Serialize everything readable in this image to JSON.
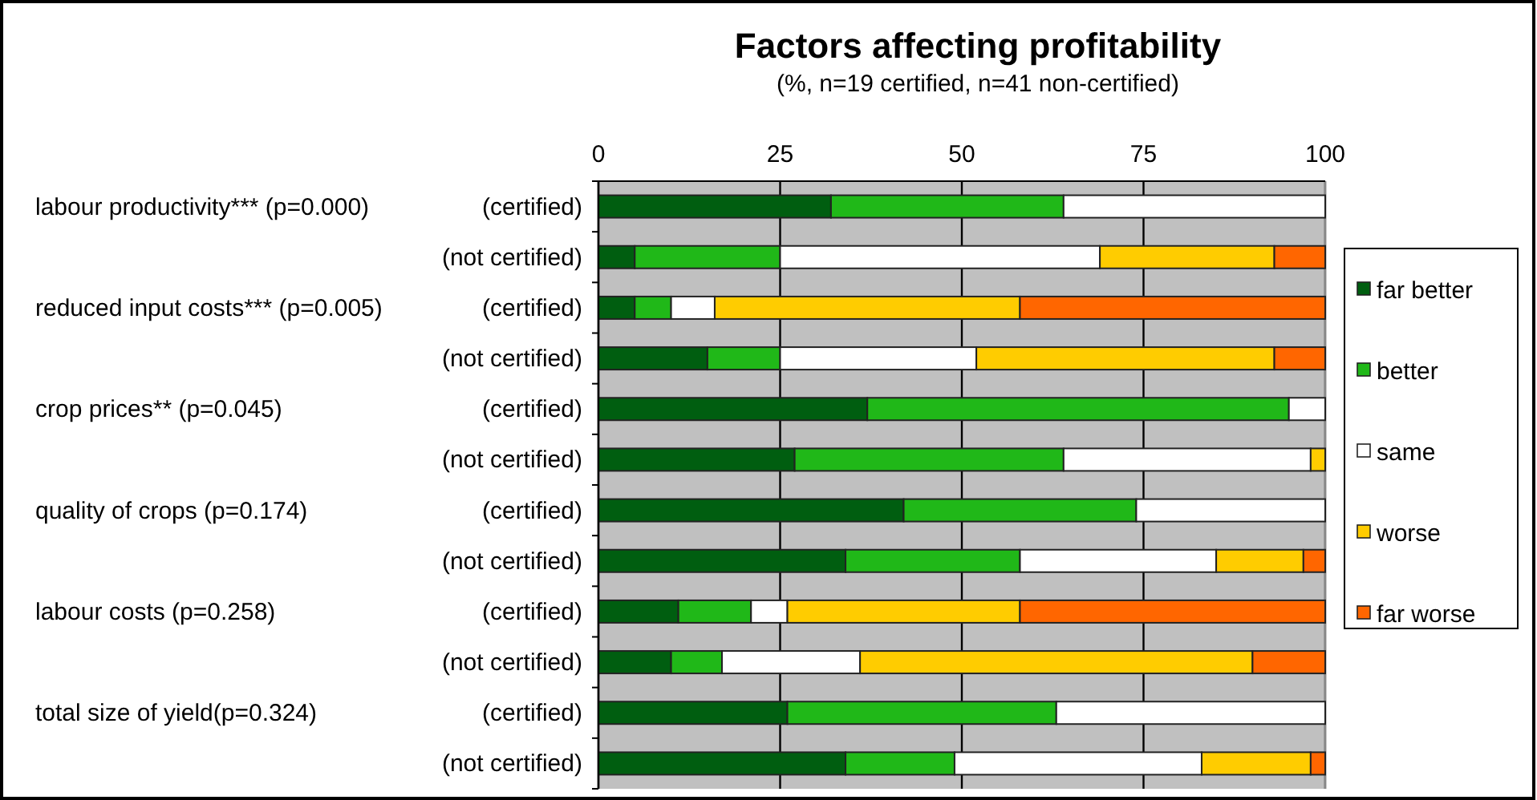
{
  "chart_data": {
    "type": "bar",
    "orientation": "horizontal",
    "stacked": true,
    "title": "Factors affecting profitability",
    "subtitle": "(%, n=19 certified, n=41 non-certified)",
    "categories": [
      "(certified)",
      "(not certified)",
      "(certified)",
      "(not certified)",
      "(certified)",
      "(not certified)",
      "(certified)",
      "(not certified)",
      "(certified)",
      "(not certified)",
      "(certified)",
      "(not certified)"
    ],
    "annotations": [
      "labour productivity*** (p=0.000)",
      "reduced input costs*** (p=0.005)",
      "crop prices** (p=0.045)",
      "quality of crops (p=0.174)",
      "labour costs (p=0.258)",
      "total size of yield(p=0.324)"
    ],
    "series": [
      {
        "name": "far better",
        "color": "#005e10",
        "values": [
          32,
          5,
          5,
          15,
          37,
          27,
          42,
          34,
          11,
          10,
          26,
          34
        ]
      },
      {
        "name": "better",
        "color": "#20b818",
        "values": [
          32,
          20,
          5,
          10,
          58,
          37,
          32,
          24,
          10,
          7,
          37,
          15
        ]
      },
      {
        "name": "same",
        "color": "#ffffff",
        "values": [
          36,
          44,
          6,
          27,
          5,
          34,
          26,
          27,
          5,
          19,
          37,
          34
        ]
      },
      {
        "name": "worse",
        "color": "#ffcc00",
        "values": [
          0,
          24,
          42,
          41,
          0,
          2,
          0,
          12,
          32,
          54,
          0,
          15
        ]
      },
      {
        "name": "far worse",
        "color": "#ff6600",
        "values": [
          0,
          7,
          42,
          7,
          0,
          0,
          0,
          3,
          42,
          10,
          0,
          2
        ]
      }
    ],
    "xlim": [
      0,
      100
    ],
    "xticks": [
      0,
      25,
      50,
      75,
      100
    ],
    "grid": "x",
    "legend": "right"
  }
}
